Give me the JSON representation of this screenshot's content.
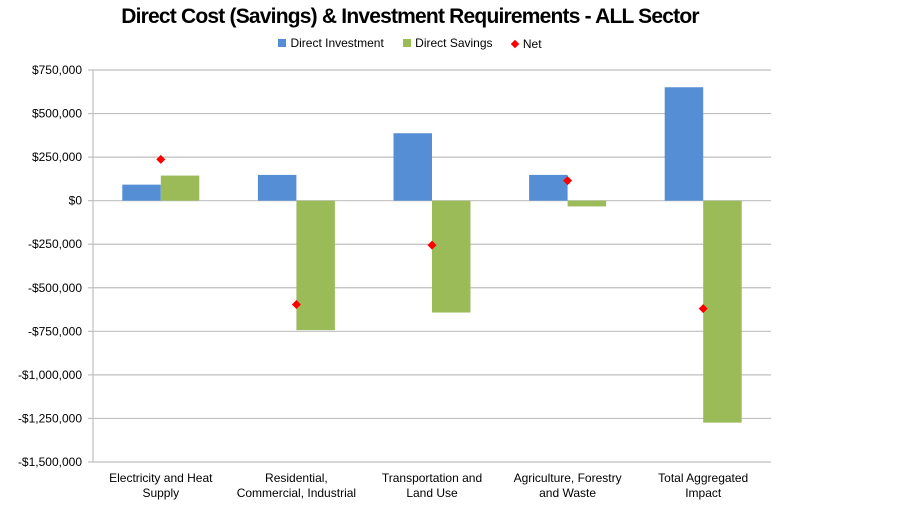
{
  "chart_data": {
    "type": "bar",
    "title": "Direct Cost (Savings) & Investment Requirements - ALL Sector",
    "xlabel": "",
    "ylabel": "",
    "categories": [
      [
        "Electricity and Heat",
        "Supply"
      ],
      [
        "Residential,",
        "Commercial, Industrial"
      ],
      [
        "Transportation and",
        "Land Use"
      ],
      [
        "Agriculture, Forestry",
        "and Waste"
      ],
      [
        "Total Aggregated",
        "Impact"
      ]
    ],
    "series": [
      {
        "name": "Direct Investment",
        "kind": "bar",
        "color": "#558ED5",
        "values": [
          92000,
          148000,
          387000,
          148000,
          651000
        ]
      },
      {
        "name": "Direct Savings",
        "kind": "bar",
        "color": "#9BBB59",
        "values": [
          144000,
          -743000,
          -642000,
          -33000,
          -1274000
        ]
      },
      {
        "name": "Net",
        "kind": "marker",
        "color": "#FF0000",
        "values": [
          237000,
          -596000,
          -255000,
          115000,
          -620000
        ]
      }
    ],
    "ylim": [
      -1500000,
      750000
    ],
    "yticks": [
      750000,
      500000,
      250000,
      0,
      -250000,
      -500000,
      -750000,
      -1000000,
      -1250000,
      -1500000
    ],
    "ytick_labels": [
      "$750,000",
      "$500,000",
      "$250,000",
      "$0",
      "-$250,000",
      "-$500,000",
      "-$750,000",
      "-$1,000,000",
      "-$1,250,000",
      "-$1,500,000"
    ],
    "grid": true,
    "legend_position": "top-center"
  }
}
